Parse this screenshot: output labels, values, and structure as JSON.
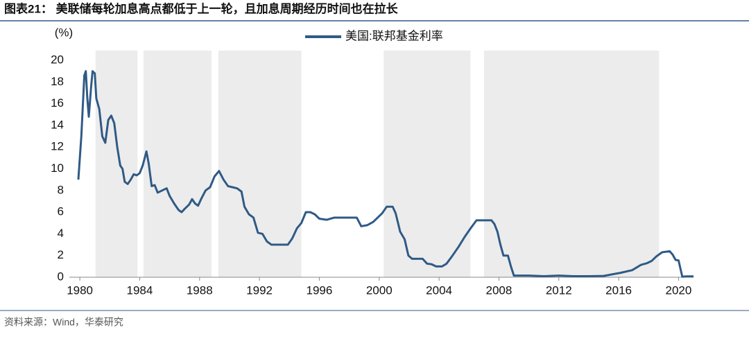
{
  "chart_data": {
    "type": "line",
    "title": "图表21：  美联储每轮加息高点都低于上一轮，且加息周期经历时间也在拉长",
    "y_label": "(%)",
    "source": "资料来源：Wind，华泰研究",
    "xlim": [
      1979.3,
      2021
    ],
    "ylim": [
      0,
      20.9
    ],
    "xticks": [
      1980,
      1984,
      1988,
      1992,
      1996,
      2000,
      2004,
      2008,
      2012,
      2016,
      2020
    ],
    "yticks": [
      0,
      2,
      4,
      6,
      8,
      10,
      12,
      14,
      16,
      18,
      20
    ],
    "shade_color": "#ececec",
    "shaded_periods": [
      [
        1981.05,
        1983.85
      ],
      [
        1984.25,
        1988.8
      ],
      [
        1989.25,
        1994.8
      ],
      [
        2000.3,
        2006.1
      ],
      [
        2007.0,
        2018.7
      ]
    ],
    "series": [
      {
        "name": "美国:联邦基金利率",
        "color": "#2f5a85",
        "x": [
          1979.9,
          1980.1,
          1980.3,
          1980.4,
          1980.5,
          1980.6,
          1980.75,
          1980.85,
          1981.0,
          1981.1,
          1981.3,
          1981.5,
          1981.7,
          1981.9,
          1982.1,
          1982.3,
          1982.5,
          1982.7,
          1982.85,
          1983.0,
          1983.2,
          1983.4,
          1983.6,
          1983.8,
          1984.0,
          1984.2,
          1984.45,
          1984.6,
          1984.8,
          1985.0,
          1985.2,
          1985.5,
          1985.8,
          1986.0,
          1986.3,
          1986.6,
          1986.8,
          1987.0,
          1987.3,
          1987.5,
          1987.7,
          1987.9,
          1988.1,
          1988.4,
          1988.7,
          1989.0,
          1989.3,
          1989.6,
          1989.9,
          1990.2,
          1990.5,
          1990.8,
          1991.0,
          1991.3,
          1991.6,
          1991.9,
          1992.2,
          1992.5,
          1992.8,
          1993.2,
          1993.6,
          1993.9,
          1994.2,
          1994.5,
          1994.8,
          1995.1,
          1995.4,
          1995.7,
          1996.0,
          1996.5,
          1997.0,
          1997.5,
          1998.0,
          1998.5,
          1998.8,
          1999.2,
          1999.6,
          1999.9,
          2000.2,
          2000.5,
          2000.9,
          2001.1,
          2001.4,
          2001.7,
          2001.95,
          2002.2,
          2002.6,
          2002.9,
          2003.2,
          2003.5,
          2003.8,
          2004.2,
          2004.5,
          2004.9,
          2005.3,
          2005.7,
          2006.1,
          2006.5,
          2007.0,
          2007.5,
          2007.7,
          2007.9,
          2008.1,
          2008.3,
          2008.6,
          2008.8,
          2009.0,
          2010.0,
          2011.0,
          2012.0,
          2013.0,
          2014.0,
          2015.0,
          2015.9,
          2016.1,
          2016.9,
          2017.2,
          2017.5,
          2017.9,
          2018.2,
          2018.5,
          2018.9,
          2019.4,
          2019.6,
          2019.8,
          2020.0,
          2020.15,
          2020.25,
          2020.5,
          2021.0
        ],
        "values": [
          9.0,
          13.0,
          18.6,
          19.0,
          16.5,
          14.8,
          17.5,
          19.0,
          18.8,
          16.5,
          15.5,
          13.0,
          12.4,
          14.5,
          14.9,
          14.2,
          12.0,
          10.3,
          10.0,
          8.8,
          8.6,
          9.0,
          9.5,
          9.4,
          9.6,
          10.3,
          11.6,
          10.5,
          8.4,
          8.5,
          7.8,
          8.0,
          8.2,
          7.5,
          6.8,
          6.2,
          6.0,
          6.3,
          6.7,
          7.2,
          6.8,
          6.6,
          7.2,
          8.0,
          8.3,
          9.3,
          9.8,
          9.0,
          8.4,
          8.3,
          8.2,
          7.9,
          6.5,
          5.8,
          5.5,
          4.1,
          4.0,
          3.3,
          3.0,
          3.0,
          3.0,
          3.0,
          3.6,
          4.5,
          5.0,
          6.0,
          6.0,
          5.8,
          5.4,
          5.3,
          5.5,
          5.5,
          5.5,
          5.5,
          4.7,
          4.8,
          5.1,
          5.5,
          5.9,
          6.5,
          6.5,
          5.9,
          4.2,
          3.5,
          2.0,
          1.7,
          1.7,
          1.7,
          1.25,
          1.2,
          1.0,
          1.0,
          1.25,
          2.0,
          2.8,
          3.7,
          4.5,
          5.25,
          5.25,
          5.25,
          4.9,
          4.2,
          3.0,
          2.0,
          2.0,
          1.0,
          0.15,
          0.15,
          0.1,
          0.15,
          0.1,
          0.1,
          0.12,
          0.35,
          0.4,
          0.65,
          0.9,
          1.15,
          1.3,
          1.5,
          1.9,
          2.3,
          2.4,
          2.1,
          1.6,
          1.55,
          0.65,
          0.05,
          0.08,
          0.08
        ]
      }
    ]
  }
}
